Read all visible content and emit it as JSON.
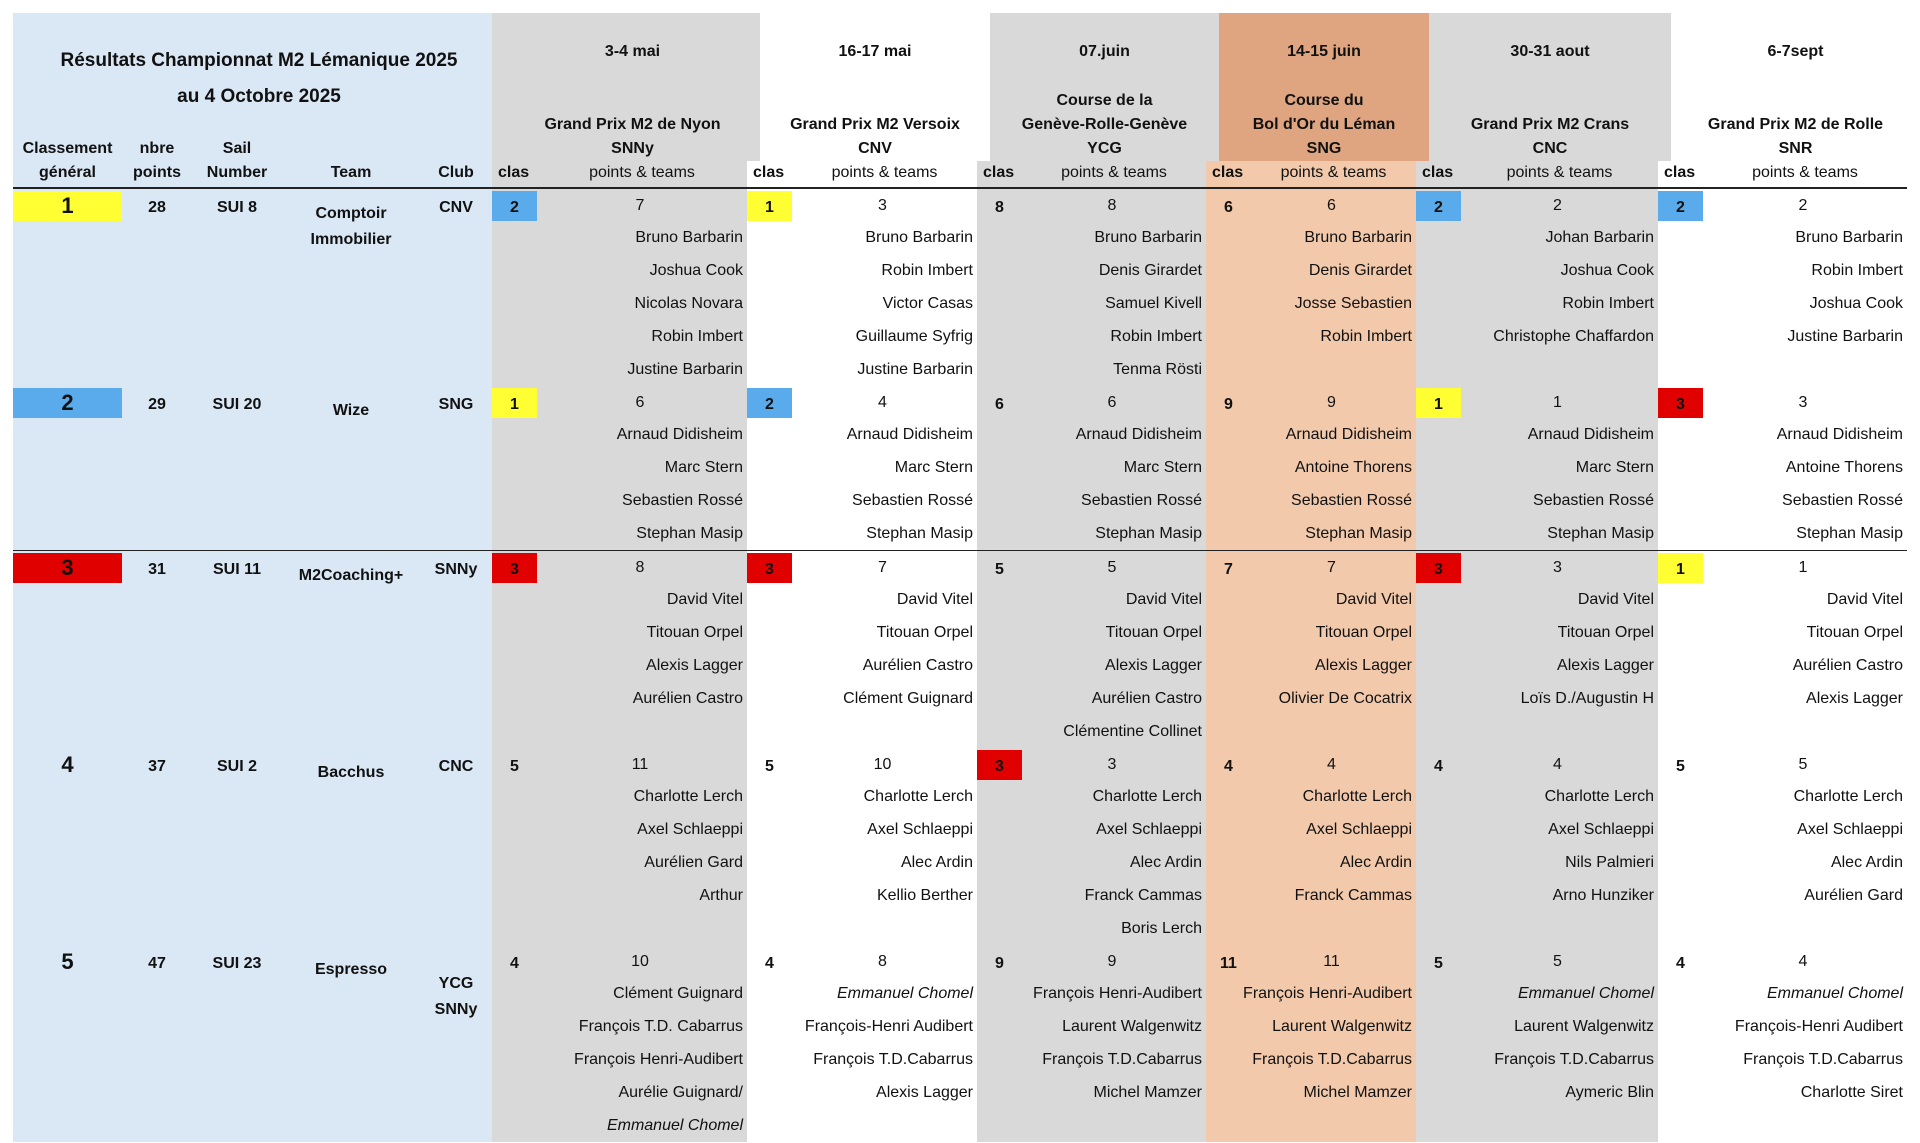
{
  "title": {
    "line1": "Résultats Championnat M2 Lémanique 2025",
    "line2": "au 4 Octobre 2025"
  },
  "columns": {
    "rank": [
      "Classement",
      "général"
    ],
    "points": [
      "nbre",
      "points"
    ],
    "sail": [
      "Sail",
      "Number"
    ],
    "team": "Team",
    "club": "Club",
    "clas": "clas",
    "points_teams": "points & teams"
  },
  "colors": {
    "left_panel": "#dae7f5",
    "gray": "#d9d9d9",
    "orange_header": "#dea580",
    "orange_body": "#f2c9ab",
    "yellow": "#ffff33",
    "blue": "#5aabeb",
    "red": "#e00000"
  },
  "italic_names": [
    "Emmanuel Chomel"
  ],
  "events": [
    {
      "date": "3-4 mai",
      "name": [
        "Grand Prix M2 de Nyon",
        "SNNy"
      ],
      "bg": "gray"
    },
    {
      "date": "16-17 mai",
      "name": [
        "Grand Prix M2 Versoix",
        "CNV"
      ],
      "bg": "white"
    },
    {
      "date": "07.juin",
      "name": [
        "Course de la",
        "Genève-Rolle-Genève",
        "YCG"
      ],
      "bg": "gray"
    },
    {
      "date": "14-15 juin",
      "name": [
        "Course du",
        "Bol d'Or du Léman",
        "SNG"
      ],
      "bg": "orange"
    },
    {
      "date": "30-31 aout",
      "name": [
        "Grand Prix M2  Crans",
        "CNC"
      ],
      "bg": "gray"
    },
    {
      "date": "6-7sept",
      "name": [
        "Grand Prix M2 de  Rolle",
        "SNR"
      ],
      "bg": "white"
    }
  ],
  "teams": [
    {
      "rank": "1",
      "rank_color": "yellow",
      "points": "28",
      "sail": "SUI 8",
      "team": [
        "Comptoir",
        "Immobilier"
      ],
      "club": [
        "CNV"
      ],
      "results": [
        {
          "clas": "2",
          "color": "blue",
          "points": "7",
          "crew": [
            "Bruno Barbarin",
            "Joshua Cook",
            "Nicolas Novara",
            "Robin Imbert",
            "Justine Barbarin"
          ]
        },
        {
          "clas": "1",
          "color": "yellow",
          "points": "3",
          "crew": [
            "Bruno Barbarin",
            "Robin Imbert",
            "Victor Casas",
            "Guillaume Syfrig",
            "Justine Barbarin"
          ]
        },
        {
          "clas": "8",
          "color": "",
          "points": "8",
          "crew": [
            "Bruno Barbarin",
            "Denis Girardet",
            "Samuel Kivell",
            "Robin Imbert",
            "Tenma Rösti"
          ]
        },
        {
          "clas": "6",
          "color": "",
          "points": "6",
          "crew": [
            "Bruno Barbarin",
            "Denis Girardet",
            "Josse Sebastien",
            "Robin Imbert"
          ]
        },
        {
          "clas": "2",
          "color": "blue",
          "points": "2",
          "crew": [
            "Johan Barbarin",
            "Joshua Cook",
            "Robin Imbert",
            "Christophe Chaffardon"
          ]
        },
        {
          "clas": "2",
          "color": "blue",
          "points": "2",
          "crew": [
            "Bruno Barbarin",
            "Robin Imbert",
            "Joshua Cook",
            "Justine Barbarin"
          ]
        }
      ]
    },
    {
      "rank": "2",
      "rank_color": "blue",
      "points": "29",
      "sail": "SUI 20",
      "team": [
        "Wize"
      ],
      "club": [
        "SNG"
      ],
      "results": [
        {
          "clas": "1",
          "color": "yellow",
          "points": "6",
          "crew": [
            "Arnaud Didisheim",
            "Marc  Stern",
            "Sebastien Rossé",
            "Stephan Masip"
          ]
        },
        {
          "clas": "2",
          "color": "blue",
          "points": "4",
          "crew": [
            "Arnaud Didisheim",
            "Marc Stern",
            "Sebastien Rossé",
            "Stephan Masip"
          ]
        },
        {
          "clas": "6",
          "color": "",
          "points": "6",
          "crew": [
            "Arnaud Didisheim",
            "Marc  Stern",
            "Sebastien Rossé",
            "Stephan Masip"
          ]
        },
        {
          "clas": "9",
          "color": "",
          "points": "9",
          "crew": [
            "Arnaud Didisheim",
            "Antoine Thorens",
            "Sebastien Rossé",
            "Stephan Masip"
          ]
        },
        {
          "clas": "1",
          "color": "yellow",
          "points": "1",
          "crew": [
            "Arnaud Didisheim",
            "Marc  Stern",
            "Sebastien Rossé",
            "Stephan Masip"
          ]
        },
        {
          "clas": "3",
          "color": "red",
          "points": "3",
          "crew": [
            "Arnaud Didisheim",
            "Antoine Thorens",
            "Sebastien Rossé",
            "Stephan Masip"
          ]
        }
      ]
    },
    {
      "rank": "3",
      "rank_color": "red",
      "points": "31",
      "sail": "SUI 11",
      "team": [
        "M2Coaching+"
      ],
      "club": [
        "SNNy"
      ],
      "results": [
        {
          "clas": "3",
          "color": "red",
          "points": "8",
          "crew": [
            "David Vitel",
            "Titouan Orpel",
            "Alexis Lagger",
            "Aurélien Castro"
          ]
        },
        {
          "clas": "3",
          "color": "red",
          "points": "7",
          "crew": [
            "David Vitel",
            "Titouan Orpel",
            "Aurélien Castro",
            "Clément Guignard"
          ]
        },
        {
          "clas": "5",
          "color": "",
          "points": "5",
          "crew": [
            "David Vitel",
            "Titouan Orpel",
            "Alexis Lagger",
            "Aurélien Castro",
            "Clémentine Collinet"
          ]
        },
        {
          "clas": "7",
          "color": "",
          "points": "7",
          "crew": [
            "David Vitel",
            "Titouan Orpel",
            "Alexis Lagger",
            "Olivier De Cocatrix"
          ]
        },
        {
          "clas": "3",
          "color": "red",
          "points": "3",
          "crew": [
            "David Vitel",
            "Titouan Orpel",
            "Alexis Lagger",
            "Loïs D./Augustin H"
          ]
        },
        {
          "clas": "1",
          "color": "yellow",
          "points": "1",
          "crew": [
            "David Vitel",
            "Titouan Orpel",
            "Aurélien Castro",
            "Alexis Lagger"
          ]
        }
      ]
    },
    {
      "rank": "4",
      "rank_color": "",
      "points": "37",
      "sail": "SUI 2",
      "team": [
        "Bacchus"
      ],
      "club": [
        "CNC"
      ],
      "results": [
        {
          "clas": "5",
          "color": "",
          "points": "11",
          "crew": [
            "Charlotte Lerch",
            "Axel Schlaeppi",
            "Aurélien Gard",
            "Arthur"
          ]
        },
        {
          "clas": "5",
          "color": "",
          "points": "10",
          "crew": [
            "Charlotte Lerch",
            "Axel Schlaeppi",
            "Alec Ardin",
            "Kellio Berther"
          ]
        },
        {
          "clas": "3",
          "color": "red",
          "points": "3",
          "crew": [
            "Charlotte Lerch",
            "Axel Schlaeppi",
            "Alec Ardin",
            "Franck Cammas",
            "Boris Lerch"
          ]
        },
        {
          "clas": "4",
          "color": "",
          "points": "4",
          "crew": [
            "Charlotte Lerch",
            "Axel Schlaeppi",
            "Alec Ardin",
            "Franck Cammas"
          ]
        },
        {
          "clas": "4",
          "color": "",
          "points": "4",
          "crew": [
            "Charlotte Lerch",
            "Axel Schlaeppi",
            "Nils Palmieri",
            "Arno Hunziker"
          ]
        },
        {
          "clas": "5",
          "color": "",
          "points": "5",
          "crew": [
            "Charlotte Lerch",
            "Axel Schlaeppi",
            "Alec Ardin",
            "Aurélien Gard"
          ]
        }
      ]
    },
    {
      "rank": "5",
      "rank_color": "",
      "points": "47",
      "sail": "SUI 23",
      "team": [
        "Espresso"
      ],
      "club": [
        "YCG",
        "SNNy"
      ],
      "results": [
        {
          "clas": "4",
          "color": "",
          "points": "10",
          "crew": [
            "Clément Guignard",
            "François T.D. Cabarrus",
            "François Henri-Audibert",
            "Aurélie Guignard/",
            "Emmanuel Chomel"
          ]
        },
        {
          "clas": "4",
          "color": "",
          "points": "8",
          "crew": [
            "Emmanuel Chomel",
            "François-Henri Audibert",
            "François T.D.Cabarrus",
            "Alexis Lagger"
          ]
        },
        {
          "clas": "9",
          "color": "",
          "points": "9",
          "crew": [
            "François Henri-Audibert",
            "Laurent Walgenwitz",
            "François T.D.Cabarrus",
            "Michel Mamzer"
          ]
        },
        {
          "clas": "11",
          "color": "",
          "points": "11",
          "crew": [
            "François Henri-Audibert",
            "Laurent Walgenwitz",
            "François T.D.Cabarrus",
            "Michel Mamzer"
          ]
        },
        {
          "clas": "5",
          "color": "",
          "points": "5",
          "crew": [
            "Emmanuel Chomel",
            "Laurent Walgenwitz",
            "François T.D.Cabarrus",
            "Aymeric Blin"
          ]
        },
        {
          "clas": "4",
          "color": "",
          "points": "4",
          "crew": [
            "Emmanuel Chomel",
            "François-Henri Audibert",
            "François T.D.Cabarrus",
            "Charlotte Siret"
          ]
        }
      ]
    }
  ]
}
